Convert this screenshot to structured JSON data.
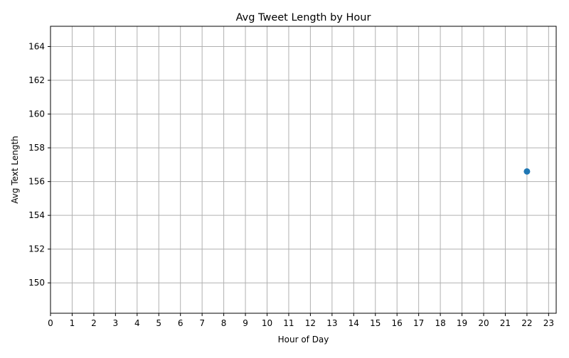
{
  "chart_data": {
    "type": "scatter",
    "title": "Avg Tweet Length by Hour",
    "xlabel": "Hour of Day",
    "ylabel": "Avg Text Length",
    "x_ticks": [
      0,
      1,
      2,
      3,
      4,
      5,
      6,
      7,
      8,
      9,
      10,
      11,
      12,
      13,
      14,
      15,
      16,
      17,
      18,
      19,
      20,
      21,
      22,
      23
    ],
    "y_ticks": [
      150,
      152,
      154,
      156,
      158,
      160,
      162,
      164
    ],
    "xlim": [
      0,
      23.35
    ],
    "ylim": [
      148.2,
      165.2
    ],
    "grid": true,
    "series": [
      {
        "color": "#1f77b4",
        "marker": "circle",
        "x": [
          22
        ],
        "y": [
          156.6
        ]
      }
    ]
  }
}
